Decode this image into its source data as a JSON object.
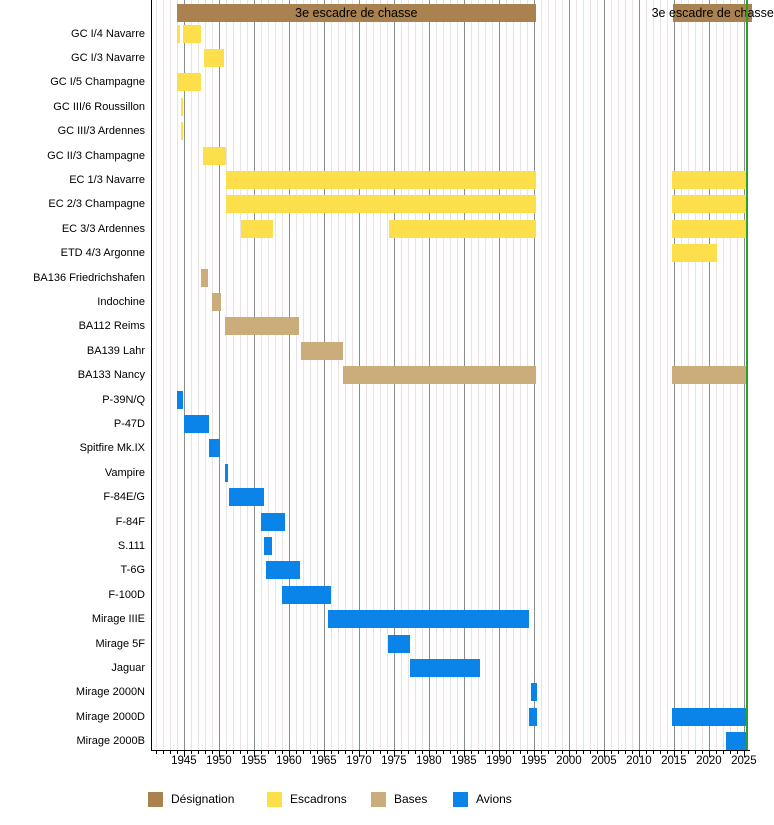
{
  "chart_data": {
    "type": "bar",
    "subtype": "gantt-timeline",
    "designation": {
      "label": "3e escadre de chasse",
      "segments": [
        [
          1943.95,
          1995.3
        ],
        [
          2014.9,
          2026.2
        ]
      ]
    },
    "rows": [
      {
        "label": "GC I/4 Navarre",
        "category": "escadrons",
        "segments": [
          [
            1944.0,
            1944.4
          ],
          [
            1944.9,
            1947.45
          ]
        ]
      },
      {
        "label": "GC I/3 Navarre",
        "category": "escadrons",
        "segments": [
          [
            1947.9,
            1950.7
          ]
        ]
      },
      {
        "label": "GC I/5 Champagne",
        "category": "escadrons",
        "segments": [
          [
            1944.0,
            1947.5
          ]
        ]
      },
      {
        "label": "GC III/6 Roussillon",
        "category": "escadrons",
        "segments": [
          [
            1944.55,
            1944.85
          ]
        ]
      },
      {
        "label": "GC III/3 Ardennes",
        "category": "escadrons",
        "segments": [
          [
            1944.55,
            1944.85
          ]
        ]
      },
      {
        "label": "GC II/3 Champagne",
        "category": "escadrons",
        "segments": [
          [
            1947.75,
            1951.0
          ]
        ]
      },
      {
        "label": "EC 1/3 Navarre",
        "category": "escadrons",
        "segments": [
          [
            1951.0,
            1995.25
          ],
          [
            2014.7,
            2025.6
          ]
        ]
      },
      {
        "label": "EC 2/3 Champagne",
        "category": "escadrons",
        "segments": [
          [
            1951.0,
            1995.25
          ],
          [
            2014.7,
            2025.6
          ]
        ]
      },
      {
        "label": "EC 3/3 Ardennes",
        "category": "escadrons",
        "segments": [
          [
            1953.1,
            1957.7
          ],
          [
            1974.3,
            1995.25
          ],
          [
            2014.7,
            2025.6
          ]
        ]
      },
      {
        "label": "ETD 4/3 Argonne",
        "category": "escadrons",
        "segments": [
          [
            2014.7,
            2021.2
          ]
        ]
      },
      {
        "label": "BA136 Friedrichshafen",
        "category": "bases",
        "segments": [
          [
            1947.5,
            1948.5
          ]
        ]
      },
      {
        "label": "Indochine",
        "category": "bases",
        "segments": [
          [
            1948.95,
            1950.3
          ]
        ]
      },
      {
        "label": "BA112 Reims",
        "category": "bases",
        "segments": [
          [
            1950.85,
            1961.4
          ]
        ]
      },
      {
        "label": "BA139 Lahr",
        "category": "bases",
        "segments": [
          [
            1961.65,
            1967.65
          ]
        ]
      },
      {
        "label": "BA133 Nancy",
        "category": "bases",
        "segments": [
          [
            1967.75,
            1995.25
          ],
          [
            2014.7,
            2025.6
          ]
        ]
      },
      {
        "label": "P-39N/Q",
        "category": "avions",
        "segments": [
          [
            1944.05,
            1944.9
          ]
        ]
      },
      {
        "label": "P-47D",
        "category": "avions",
        "segments": [
          [
            1945.05,
            1948.55
          ]
        ]
      },
      {
        "label": "Spitfire Mk.IX",
        "category": "avions",
        "segments": [
          [
            1948.6,
            1950.2
          ]
        ]
      },
      {
        "label": "Vampire",
        "category": "avions",
        "segments": [
          [
            1950.85,
            1951.3
          ]
        ]
      },
      {
        "label": "F-84E/G",
        "category": "avions",
        "segments": [
          [
            1951.45,
            1956.4
          ]
        ]
      },
      {
        "label": "F-84F",
        "category": "avions",
        "segments": [
          [
            1956.0,
            1959.4
          ]
        ]
      },
      {
        "label": "S.111",
        "category": "avions",
        "segments": [
          [
            1956.5,
            1957.6
          ]
        ]
      },
      {
        "label": "T-6G",
        "category": "avions",
        "segments": [
          [
            1956.7,
            1961.6
          ]
        ]
      },
      {
        "label": "F-100D",
        "category": "avions",
        "segments": [
          [
            1959.05,
            1965.95
          ]
        ]
      },
      {
        "label": "Mirage IIIE",
        "category": "avions",
        "segments": [
          [
            1965.6,
            1994.3
          ]
        ]
      },
      {
        "label": "Mirage 5F",
        "category": "avions",
        "segments": [
          [
            1974.1,
            1977.3
          ]
        ]
      },
      {
        "label": "Jaguar",
        "category": "avions",
        "segments": [
          [
            1977.3,
            1987.3
          ]
        ]
      },
      {
        "label": "Mirage 2000N",
        "category": "avions",
        "segments": [
          [
            1994.6,
            1995.45
          ]
        ]
      },
      {
        "label": "Mirage 2000D",
        "category": "avions",
        "segments": [
          [
            1994.3,
            1995.45
          ],
          [
            2014.7,
            2025.6
          ]
        ]
      },
      {
        "label": "Mirage 2000B",
        "category": "avions",
        "segments": [
          [
            2022.4,
            2025.6
          ]
        ]
      }
    ],
    "x_axis": {
      "min": 1940.3,
      "max": 2025.9,
      "minor_step": 1,
      "major_tick_labels": [
        "1945",
        "1950",
        "1955",
        "1960",
        "1965",
        "1970",
        "1975",
        "1980",
        "1985",
        "1990",
        "1995",
        "2000",
        "2005",
        "2010",
        "2015",
        "2020",
        "2025"
      ]
    },
    "today_line_year": 2025.4,
    "colors": {
      "designation": "#A9824F",
      "escadrons": "#FCDF4B",
      "bases": "#CBAD7B",
      "avions": "#0B84EA",
      "today_line": "#2CA02C",
      "grid_minor": "#EAE2E2",
      "grid_major": "#8C8C8C",
      "axis": "#000000"
    },
    "legend_items": [
      {
        "label": "Désignation",
        "color_key": "designation"
      },
      {
        "label": "Escadrons",
        "color_key": "escadrons"
      },
      {
        "label": "Bases",
        "color_key": "bases"
      },
      {
        "label": "Avions",
        "color_key": "avions"
      }
    ]
  }
}
